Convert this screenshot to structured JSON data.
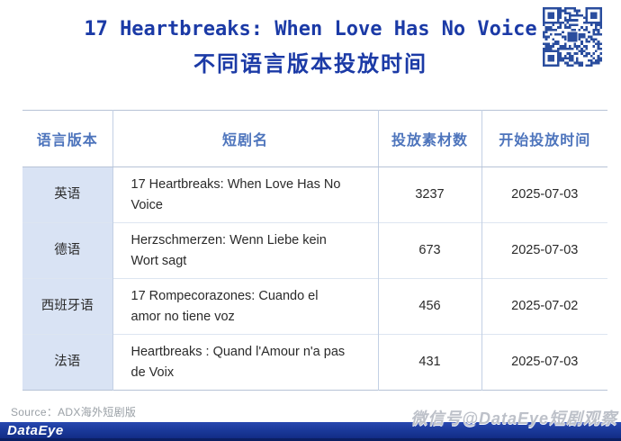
{
  "header": {
    "title_line1": "17 Heartbreaks: When Love Has No Voice",
    "title_line2": "不同语言版本投放时间"
  },
  "table": {
    "columns": [
      "语言版本",
      "短剧名",
      "投放素材数",
      "开始投放时间"
    ],
    "rows": [
      {
        "language": "英语",
        "title": "17 Heartbreaks: When Love Has No Voice",
        "materials": "3237",
        "start_date": "2025-07-03"
      },
      {
        "language": "德语",
        "title": "Herzschmerzen: Wenn Liebe kein Wort sagt",
        "materials": "673",
        "start_date": "2025-07-03"
      },
      {
        "language": "西班牙语",
        "title": "17 Rompecorazones: Cuando el amor no tiene voz",
        "materials": "456",
        "start_date": "2025-07-02"
      },
      {
        "language": "法语",
        "title": "Heartbreaks : Quand l'Amour n'a pas de Voix",
        "materials": "431",
        "start_date": "2025-07-03"
      }
    ]
  },
  "footer": {
    "source": "Source：ADX海外短剧版",
    "watermark": "微信号@DataEye短剧观察",
    "logo": "DataEye"
  },
  "icons": {
    "qr_code": "qr-code"
  },
  "colors": {
    "title_blue": "#1b3aa6",
    "header_text_blue": "#4d74bc",
    "first_column_bg": "#d9e3f4",
    "qr_blue": "#2a4d9e",
    "bottom_bar_blue": "#1a3898"
  },
  "chart_data": {
    "type": "table",
    "title": "17 Heartbreaks: When Love Has No Voice 不同语言版本投放时间",
    "columns": [
      "语言版本",
      "短剧名",
      "投放素材数",
      "开始投放时间"
    ],
    "rows": [
      [
        "英语",
        "17 Heartbreaks: When Love Has No Voice",
        3237,
        "2025-07-03"
      ],
      [
        "德语",
        "Herzschmerzen: Wenn Liebe kein Wort sagt",
        673,
        "2025-07-03"
      ],
      [
        "西班牙语",
        "17 Rompecorazones: Cuando el amor no tiene voz",
        456,
        "2025-07-02"
      ],
      [
        "法语",
        "Heartbreaks : Quand l'Amour n'a pas de Voix",
        431,
        "2025-07-03"
      ]
    ],
    "legend_position": "none",
    "grid": true
  }
}
